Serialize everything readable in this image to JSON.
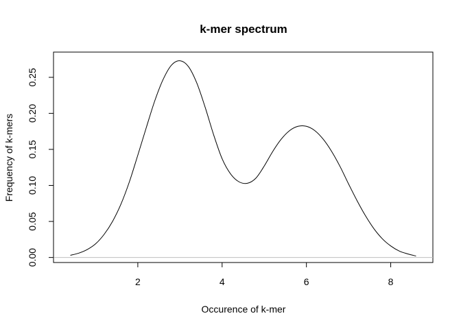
{
  "chart_data": {
    "type": "line",
    "title": "k-mer spectrum",
    "xlabel": "Occurence of k-mer",
    "ylabel": "Frequency of k-mers",
    "xlim": [
      0.0,
      9.0
    ],
    "ylim": [
      -0.007,
      0.285
    ],
    "xticks": [
      2,
      4,
      6,
      8
    ],
    "xtick_labels": [
      "2",
      "4",
      "6",
      "8"
    ],
    "yticks": [
      0.0,
      0.05,
      0.1,
      0.15,
      0.2,
      0.25
    ],
    "ytick_labels": [
      "0.00",
      "0.05",
      "0.10",
      "0.15",
      "0.20",
      "0.25"
    ],
    "grid": false,
    "reference_line": {
      "y": 0,
      "color": "#bebebe"
    },
    "series": [
      {
        "color": "#000000",
        "x": [
          0.4,
          0.6,
          0.8,
          1.0,
          1.2,
          1.4,
          1.6,
          1.8,
          2.0,
          2.2,
          2.4,
          2.6,
          2.8,
          3.0,
          3.2,
          3.4,
          3.6,
          3.8,
          4.0,
          4.2,
          4.4,
          4.6,
          4.8,
          5.0,
          5.2,
          5.4,
          5.6,
          5.8,
          6.0,
          6.2,
          6.4,
          6.6,
          6.8,
          7.0,
          7.2,
          7.4,
          7.6,
          7.8,
          8.0,
          8.2,
          8.4,
          8.6
        ],
        "y": [
          0.003,
          0.006,
          0.011,
          0.019,
          0.032,
          0.05,
          0.074,
          0.105,
          0.142,
          0.18,
          0.217,
          0.247,
          0.267,
          0.273,
          0.265,
          0.242,
          0.208,
          0.17,
          0.137,
          0.116,
          0.105,
          0.103,
          0.11,
          0.127,
          0.147,
          0.164,
          0.176,
          0.182,
          0.182,
          0.176,
          0.164,
          0.147,
          0.126,
          0.102,
          0.079,
          0.058,
          0.04,
          0.026,
          0.016,
          0.009,
          0.005,
          0.002
        ]
      }
    ]
  }
}
